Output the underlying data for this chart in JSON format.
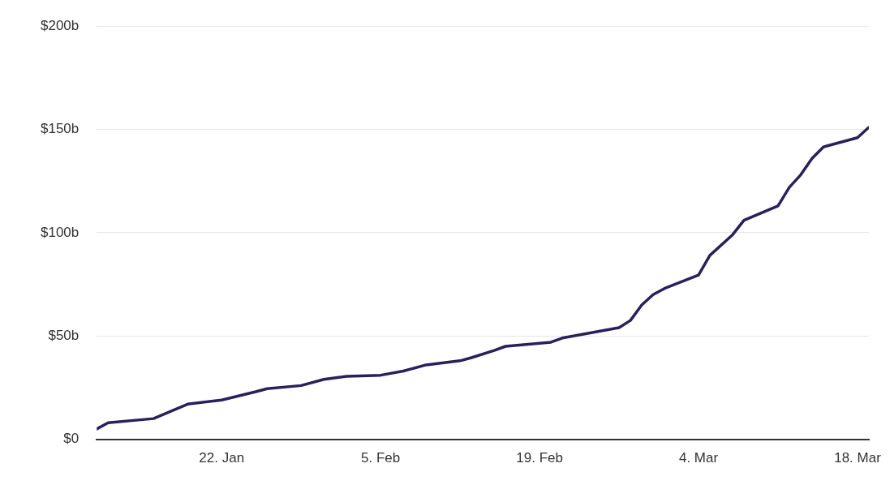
{
  "chart_data": {
    "type": "line",
    "x": [
      "--01-11",
      "--01-12",
      "--01-16",
      "--01-19",
      "--01-22",
      "--01-25",
      "--01-26",
      "--01-29",
      "--01-31",
      "--02-02",
      "--02-05",
      "--02-07",
      "--02-09",
      "--02-12",
      "--02-13",
      "--02-15",
      "--02-16",
      "--02-20",
      "--02-21",
      "--02-26",
      "--02-27",
      "--02-28",
      "--02-29",
      "--03-01",
      "--03-04",
      "--03-05",
      "--03-07",
      "--03-08",
      "--03-11",
      "--03-12",
      "--03-13",
      "--03-14",
      "--03-15",
      "--03-18",
      "--03-19"
    ],
    "series": [
      {
        "color": "#2b1f5c",
        "values": [
          5,
          8,
          10,
          17,
          19,
          23,
          24.5,
          26,
          29,
          30.5,
          31,
          33,
          36,
          38,
          39.5,
          43,
          45,
          47,
          49,
          54,
          57.5,
          65,
          70,
          73,
          79.5,
          89,
          99,
          106,
          113,
          122,
          128,
          136,
          141.5,
          146,
          151
        ]
      }
    ],
    "xlim": [
      "--01-11",
      "--03-19"
    ],
    "xticks": [
      {
        "value": "--01-22",
        "label": "22. Jan"
      },
      {
        "value": "--02-05",
        "label": "5. Feb"
      },
      {
        "value": "--02-19",
        "label": "19. Feb"
      },
      {
        "value": "--03-04",
        "label": "4. Mar"
      },
      {
        "value": "--03-18",
        "label": "18. Mar"
      }
    ],
    "ylim": [
      0,
      200
    ],
    "yticks": [
      {
        "value": 0,
        "label": "$0"
      },
      {
        "value": 50,
        "label": "$50b"
      },
      {
        "value": 100,
        "label": "$100b"
      },
      {
        "value": 150,
        "label": "$150b"
      },
      {
        "value": 200,
        "label": "$200b"
      }
    ],
    "grid": "y",
    "legend": false,
    "marker": "none",
    "line_style": "solid"
  }
}
